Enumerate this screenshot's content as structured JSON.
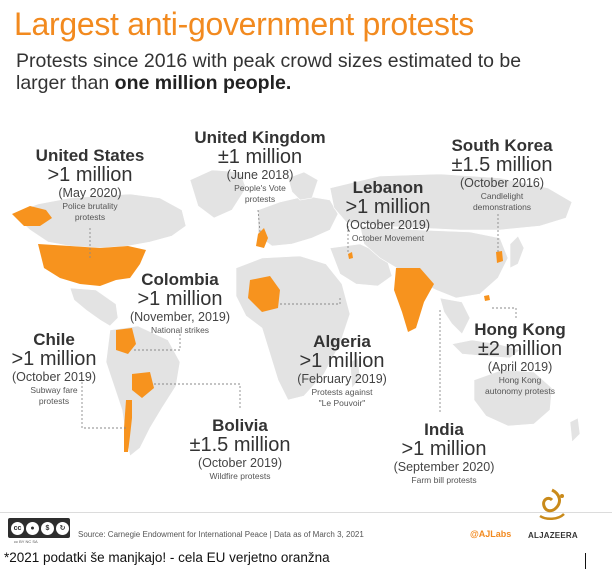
{
  "title": "Largest anti-government protests",
  "subtitle_prefix": "Protests since 2016 with peak crowd sizes estimated to be larger than ",
  "subtitle_bold": "one million people.",
  "colors": {
    "accent": "#f28a1f",
    "land": "#e3e3e3",
    "leader": "#8a8a8a"
  },
  "protests": [
    {
      "country": "United States",
      "crowd": ">1 million",
      "date": "(May 2020)",
      "reason": "Police brutality protests"
    },
    {
      "country": "United Kingdom",
      "crowd": "±1 million",
      "date": "(June 2018)",
      "reason": "People's Vote protests"
    },
    {
      "country": "Lebanon",
      "crowd": ">1 million",
      "date": "(October 2019)",
      "reason": "October Movement"
    },
    {
      "country": "South Korea",
      "crowd": "±1.5 million",
      "date": "(October 2016)",
      "reason": "Candlelight demonstrations"
    },
    {
      "country": "Colombia",
      "crowd": ">1 million",
      "date": "(November, 2019)",
      "reason": "National strikes"
    },
    {
      "country": "Chile",
      "crowd": ">1 million",
      "date": "(October 2019)",
      "reason": "Subway fare protests"
    },
    {
      "country": "Algeria",
      "crowd": ">1 million",
      "date": "(February 2019)",
      "reason": "Protests against \"Le Pouvoir\""
    },
    {
      "country": "Hong Kong",
      "crowd": "±2 million",
      "date": "(April 2019)",
      "reason": "Hong Kong autonomy protests"
    },
    {
      "country": "Bolivia",
      "crowd": "±1.5 million",
      "date": "(October 2019)",
      "reason": "Wildfire protests"
    },
    {
      "country": "India",
      "crowd": ">1 million",
      "date": "(September 2020)",
      "reason": "Farm bill protests"
    }
  ],
  "footer": {
    "license": "cc BY NC SA",
    "source": "Source: Carnegie Endowment for International Peace | Data as of March 3, 2021",
    "credit": "@AJLabs",
    "brand": "ALJAZEERA"
  },
  "caption": "*2021 podatki še manjkajo! - cela EU verjetno oranžna"
}
